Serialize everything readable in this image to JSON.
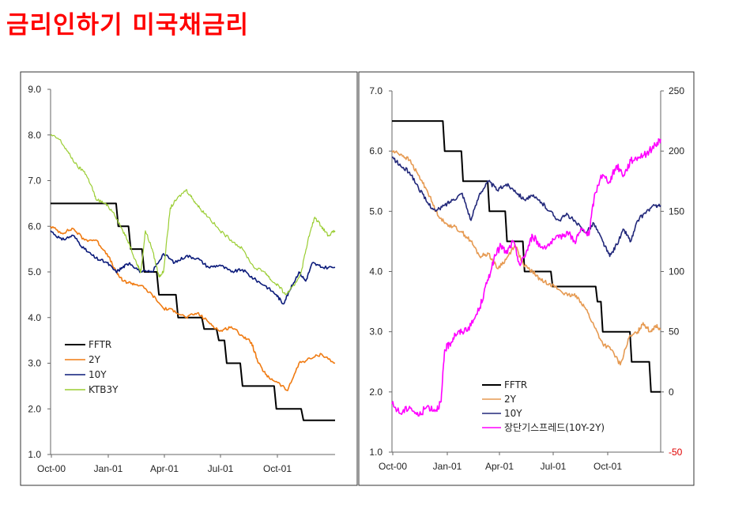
{
  "title": "금리인하기 미국채금리",
  "chart_data": [
    {
      "type": "line",
      "x_ticks": [
        "Oct-00",
        "Jan-01",
        "Apr-01",
        "Jul-01",
        "Oct-01"
      ],
      "y_ticks": [
        "1.0",
        "2.0",
        "3.0",
        "4.0",
        "5.0",
        "6.0",
        "7.0",
        "8.0",
        "9.0"
      ],
      "ylim": [
        1.0,
        9.0
      ],
      "grid": false,
      "legend_position": "bottom-left",
      "series": [
        {
          "name": "FFTR",
          "color": "#000000",
          "step": true,
          "x": [
            0,
            2.9,
            3.0,
            3.45,
            3.55,
            4.05,
            4.15,
            4.7,
            4.8,
            5.55,
            5.65,
            6.7,
            6.8,
            7.35,
            7.45,
            7.7,
            7.8,
            8.4,
            8.5,
            9.9,
            10.0,
            11.1,
            11.2,
            12.6
          ],
          "values": [
            6.5,
            6.5,
            6.0,
            6.0,
            5.5,
            5.5,
            5.0,
            5.0,
            4.5,
            4.5,
            4.0,
            4.0,
            3.75,
            3.75,
            3.5,
            3.5,
            3.0,
            3.0,
            2.5,
            2.5,
            2.0,
            2.0,
            1.75,
            1.75
          ]
        },
        {
          "name": "2Y",
          "color": "#f07b12",
          "x": [
            0,
            0.5,
            1.0,
            1.5,
            2.0,
            2.5,
            2.9,
            3.2,
            3.6,
            4.0,
            4.5,
            5.0,
            5.5,
            6.0,
            6.5,
            7.0,
            7.5,
            8.0,
            8.5,
            8.9,
            9.2,
            9.6,
            10.0,
            10.5,
            11.0,
            11.5,
            12.0,
            12.6
          ],
          "values": [
            6.0,
            5.85,
            5.95,
            5.7,
            5.7,
            5.4,
            5.0,
            4.8,
            4.75,
            4.7,
            4.5,
            4.2,
            4.15,
            4.0,
            4.1,
            3.9,
            3.7,
            3.8,
            3.6,
            3.45,
            3.0,
            2.7,
            2.6,
            2.4,
            3.0,
            3.1,
            3.2,
            3.0
          ]
        },
        {
          "name": "10Y",
          "color": "#0a1a7a",
          "x": [
            0,
            0.5,
            1.0,
            1.5,
            2.0,
            2.5,
            2.9,
            3.2,
            3.5,
            4.0,
            4.5,
            5.0,
            5.5,
            6.0,
            6.5,
            7.0,
            7.5,
            8.0,
            8.5,
            9.0,
            9.5,
            10.0,
            10.3,
            10.6,
            11.0,
            11.3,
            11.6,
            12.0,
            12.6
          ],
          "values": [
            5.9,
            5.7,
            5.8,
            5.5,
            5.3,
            5.2,
            5.0,
            5.1,
            5.2,
            5.0,
            5.0,
            5.4,
            5.2,
            5.35,
            5.3,
            5.1,
            5.15,
            5.0,
            5.05,
            4.85,
            4.7,
            4.5,
            4.3,
            4.6,
            5.0,
            4.8,
            5.2,
            5.1,
            5.1
          ]
        },
        {
          "name": "KTB3Y",
          "color": "#9acd32",
          "x": [
            0,
            0.4,
            0.8,
            1.2,
            1.5,
            1.8,
            2.0,
            2.4,
            2.8,
            3.2,
            3.5,
            3.8,
            4.0,
            4.2,
            4.5,
            4.8,
            5.0,
            5.3,
            5.6,
            6.0,
            6.3,
            6.6,
            7.0,
            7.5,
            8.0,
            8.5,
            9.0,
            9.5,
            9.8,
            10.1,
            10.4,
            10.8,
            11.1,
            11.4,
            11.7,
            12.0,
            12.3,
            12.6
          ],
          "values": [
            8.0,
            7.9,
            7.6,
            7.3,
            7.2,
            6.9,
            6.6,
            6.5,
            6.3,
            5.9,
            5.6,
            5.2,
            5.0,
            5.9,
            5.5,
            4.9,
            5.0,
            6.4,
            6.6,
            6.8,
            6.6,
            6.4,
            6.2,
            5.9,
            5.7,
            5.5,
            5.1,
            5.0,
            4.8,
            4.7,
            4.5,
            4.7,
            5.0,
            5.7,
            6.2,
            6.0,
            5.8,
            5.9
          ]
        }
      ]
    },
    {
      "type": "line",
      "x_ticks": [
        "Oct-00",
        "Jan-01",
        "Apr-01",
        "Jul-01",
        "Oct-01"
      ],
      "y_ticks": [
        "1.0",
        "2.0",
        "3.0",
        "4.0",
        "5.0",
        "6.0",
        "7.0"
      ],
      "y2_ticks": [
        "-50",
        "0",
        "50",
        "100",
        "150",
        "200",
        "250"
      ],
      "ylim": [
        1.0,
        7.0
      ],
      "y2lim": [
        -50,
        250
      ],
      "grid": false,
      "legend_position": "bottom-center",
      "series": [
        {
          "name": "FFTR",
          "color": "#000000",
          "step": true,
          "axis": "left",
          "x": [
            0,
            2.9,
            3.0,
            3.95,
            4.05,
            5.45,
            5.55,
            6.45,
            6.55,
            7.45,
            7.55,
            9.05,
            9.15,
            11.6,
            11.7,
            11.9,
            12.0,
            13.55,
            13.65,
            14.65,
            14.75,
            15.3
          ],
          "values": [
            6.5,
            6.5,
            6.0,
            6.0,
            5.5,
            5.5,
            5.0,
            5.0,
            4.5,
            4.5,
            4.0,
            4.0,
            3.75,
            3.75,
            3.5,
            3.5,
            3.0,
            3.0,
            2.5,
            2.5,
            2.0,
            2.0
          ]
        },
        {
          "name": "2Y",
          "color": "#e69a52",
          "axis": "left",
          "x": [
            0,
            0.5,
            1.0,
            1.5,
            2.0,
            2.5,
            3.0,
            3.5,
            4.0,
            4.5,
            5.0,
            5.5,
            6.0,
            6.5,
            7.0,
            7.5,
            8.0,
            8.5,
            9.0,
            9.5,
            10.0,
            10.5,
            11.0,
            11.5,
            12.0,
            12.5,
            13.0,
            13.5,
            14.0,
            14.3,
            14.7,
            15.0,
            15.3
          ],
          "values": [
            6.0,
            5.95,
            5.85,
            5.6,
            5.35,
            5.0,
            4.8,
            4.75,
            4.65,
            4.5,
            4.25,
            4.3,
            4.05,
            4.2,
            4.45,
            4.1,
            4.0,
            3.85,
            3.8,
            3.7,
            3.6,
            3.6,
            3.4,
            3.1,
            2.8,
            2.7,
            2.45,
            2.9,
            3.0,
            3.15,
            3.0,
            3.1,
            3.05
          ]
        },
        {
          "name": "10Y",
          "color": "#22287a",
          "axis": "left",
          "x": [
            0,
            0.5,
            1.0,
            1.5,
            2.0,
            2.5,
            3.0,
            3.5,
            4.0,
            4.5,
            5.0,
            5.5,
            6.0,
            6.5,
            7.0,
            7.5,
            8.0,
            8.5,
            9.0,
            9.5,
            10.0,
            10.5,
            11.0,
            11.5,
            12.0,
            12.4,
            12.8,
            13.2,
            13.6,
            14.0,
            14.5,
            15.0,
            15.3
          ],
          "values": [
            5.9,
            5.75,
            5.65,
            5.4,
            5.15,
            5.0,
            5.1,
            5.2,
            5.3,
            4.85,
            5.3,
            5.5,
            5.35,
            5.45,
            5.35,
            5.2,
            5.25,
            5.15,
            5.0,
            4.85,
            4.95,
            4.8,
            4.65,
            4.8,
            4.5,
            4.25,
            4.45,
            4.7,
            4.5,
            4.85,
            5.0,
            5.1,
            5.1
          ]
        },
        {
          "name": "장단기스프레드(10Y-2Y)",
          "color": "#ff00ff",
          "axis": "right",
          "x": [
            0,
            0.5,
            1.0,
            1.5,
            2.0,
            2.5,
            2.8,
            3.0,
            3.3,
            3.6,
            4.0,
            4.5,
            5.0,
            5.4,
            5.8,
            6.2,
            6.5,
            6.9,
            7.3,
            7.7,
            8.0,
            8.5,
            9.0,
            9.5,
            10.0,
            10.4,
            10.8,
            11.2,
            11.5,
            11.9,
            12.4,
            12.8,
            13.2,
            13.6,
            14.0,
            14.5,
            15.0,
            15.3
          ],
          "values": [
            -10,
            -18,
            -12,
            -20,
            -12,
            -15,
            -8,
            35,
            40,
            48,
            50,
            55,
            70,
            90,
            110,
            122,
            115,
            125,
            105,
            118,
            130,
            120,
            123,
            128,
            133,
            125,
            135,
            130,
            160,
            180,
            175,
            188,
            180,
            192,
            195,
            198,
            205,
            210
          ]
        }
      ]
    }
  ]
}
